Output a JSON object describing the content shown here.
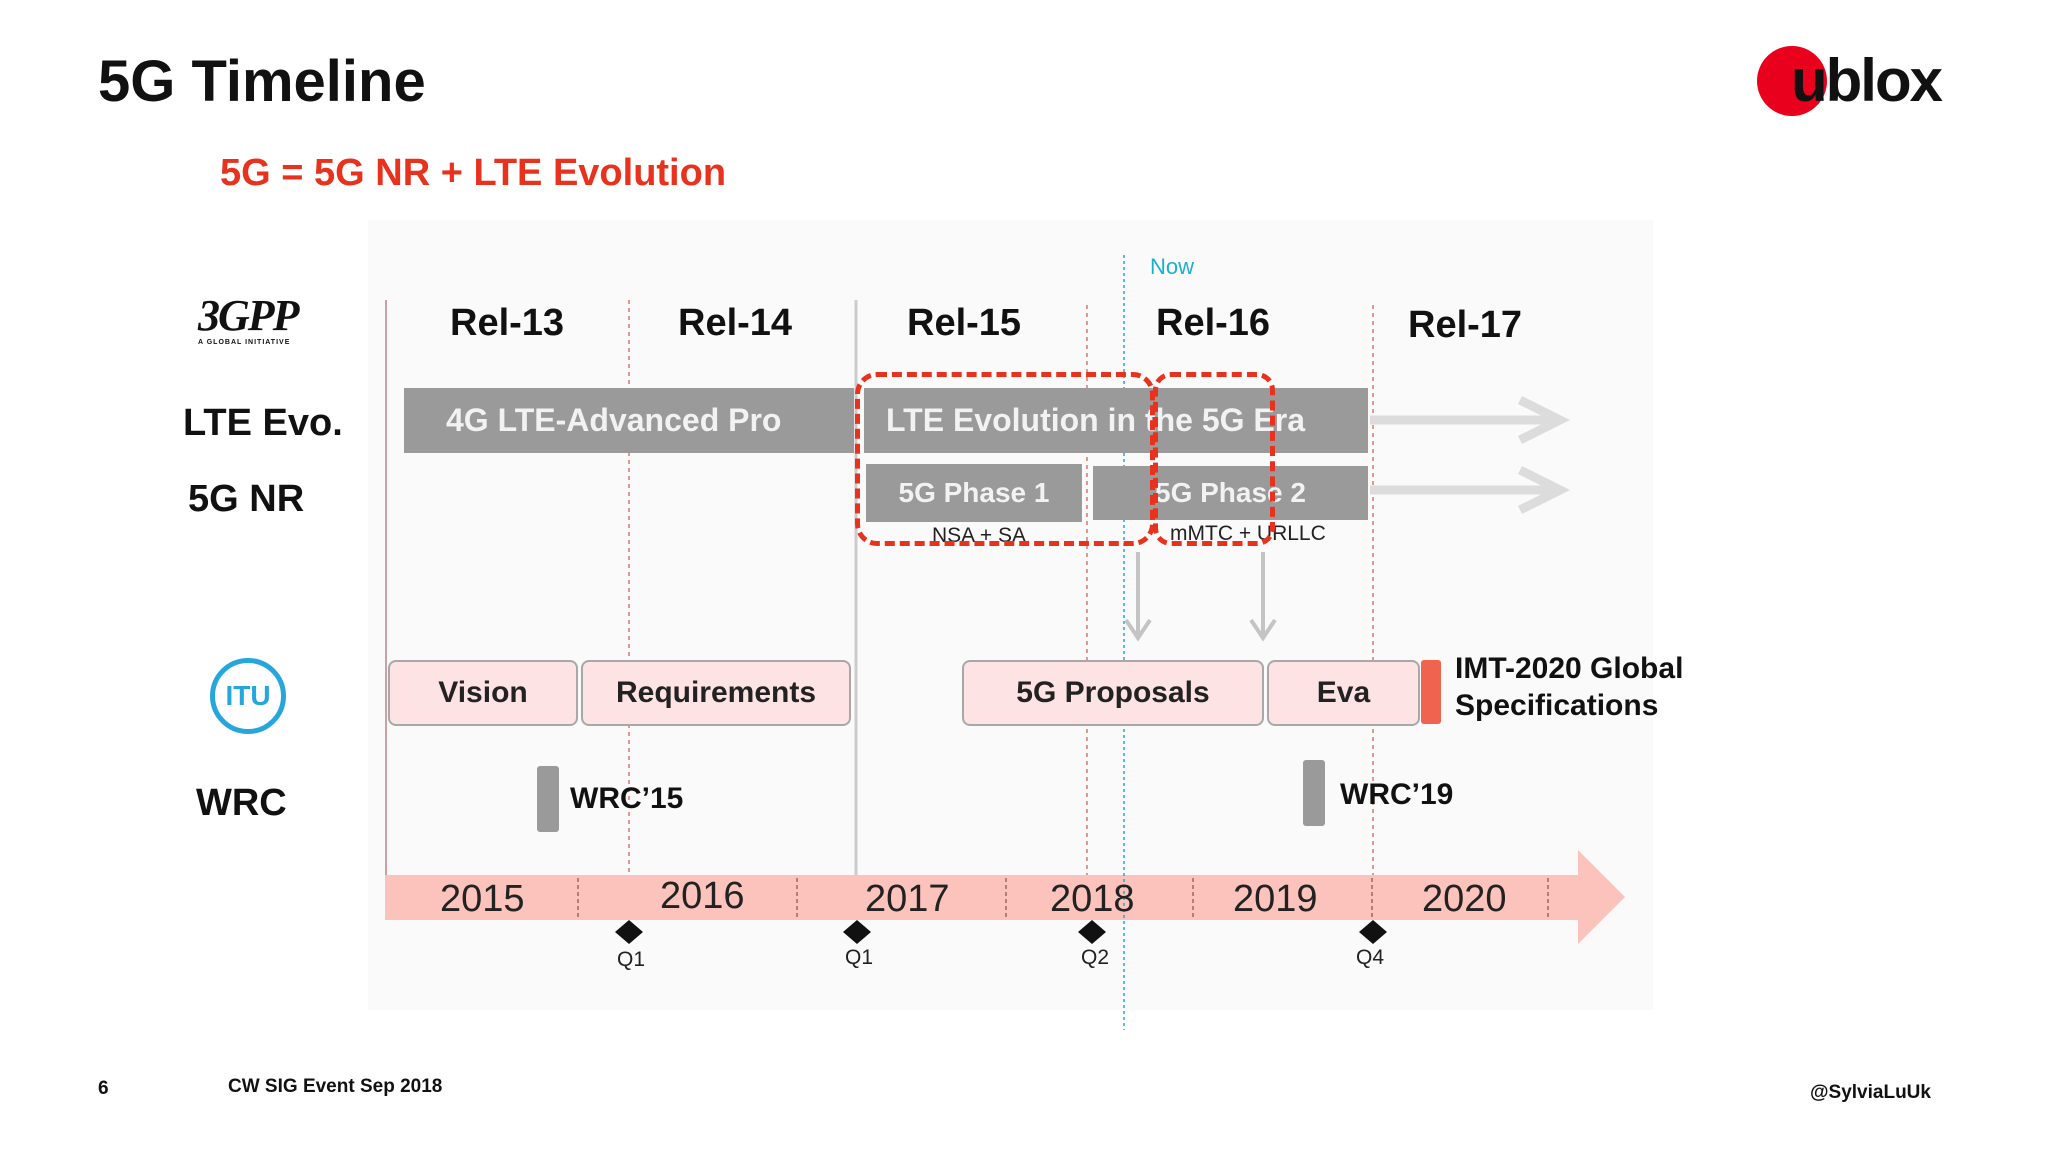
{
  "title": "5G Timeline",
  "subtitle": "5G = 5G NR + LTE Evolution",
  "logo": {
    "text": "ublox",
    "accent": "#e8001c"
  },
  "now_label": "Now",
  "org_3gpp": {
    "logo_text": "3GPP",
    "tagline": "A GLOBAL INITIATIVE"
  },
  "org_itu": {
    "logo_text": "ITU"
  },
  "releases": [
    "Rel-13",
    "Rel-14",
    "Rel-15",
    "Rel-16",
    "Rel-17"
  ],
  "rows": {
    "lte": "LTE Evo.",
    "nr": "5G NR",
    "wrc": "WRC"
  },
  "bars": {
    "lte_pro": "4G LTE-Advanced Pro",
    "lte_evolution": "LTE Evolution in the 5G Era",
    "phase1": "5G Phase 1",
    "phase1_note": "NSA + SA",
    "phase2": "5G Phase 2",
    "phase2_note": "mMTC + URLLC"
  },
  "itu_boxes": [
    "Vision",
    "Requirements",
    "5G Proposals",
    "Eva"
  ],
  "imt": {
    "line1": "IMT-2020 Global",
    "line2": "Specifications",
    "color": "#f0644f"
  },
  "wrc": [
    "WRC’15",
    "WRC’19"
  ],
  "years": [
    "2015",
    "2016",
    "2017",
    "2018",
    "2019",
    "2020"
  ],
  "quarters": [
    "Q1",
    "Q1",
    "Q2",
    "Q4"
  ],
  "footer": {
    "page": "6",
    "event": "CW SIG Event Sep 2018",
    "handle": "@SylviaLuUk"
  },
  "colors": {
    "red": "#e8321e",
    "now": "#1ab0cf",
    "gray_bar": "#9a9a9a",
    "pink": "#fde3e3",
    "timeline": "#fbc3bb"
  }
}
